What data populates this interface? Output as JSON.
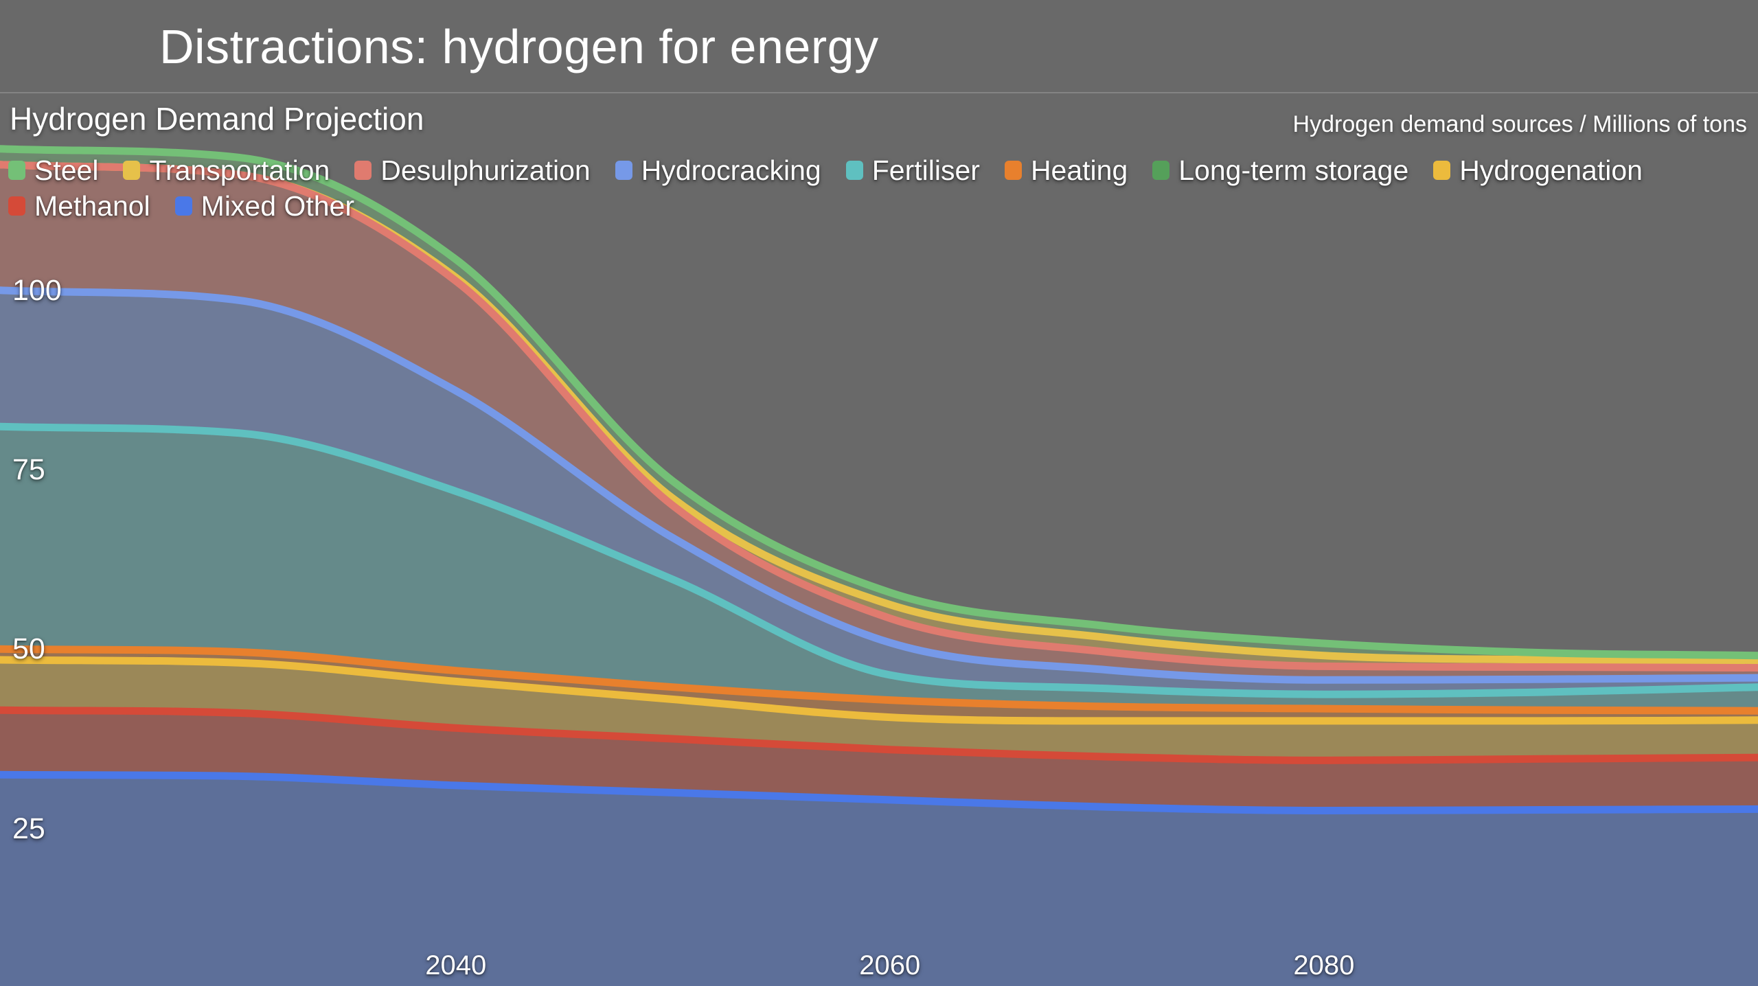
{
  "slide": {
    "title": "Distractions: hydrogen for energy"
  },
  "chart_data": {
    "type": "area",
    "stacked": true,
    "title": "Hydrogen Demand Projection",
    "right_label": "Hydrogen demand sources / Millions of tons",
    "background": "#696969",
    "fill_opacity": 0.38,
    "legend_position": "top",
    "grid": false,
    "xlim": [
      2019,
      2100
    ],
    "ylim": [
      0,
      137
    ],
    "x": [
      2019,
      2030,
      2040,
      2050,
      2060,
      2070,
      2080,
      2090,
      2100
    ],
    "x_ticks": [
      "2040",
      "2060",
      "2080"
    ],
    "x_tick_years": [
      2040,
      2060,
      2080
    ],
    "y_ticks": [
      "25",
      "50",
      "75",
      "100"
    ],
    "y_tick_values": [
      25,
      50,
      75,
      100
    ],
    "legend_rows": [
      [
        "Steel",
        "Transportation",
        "Desulphurization",
        "Hydrocracking",
        "Fertiliser",
        "Heating",
        "Long-term storage",
        "Hydrogenation"
      ],
      [
        "Methanol",
        "Mixed Other"
      ]
    ],
    "stack_order": [
      "Mixed Other",
      "Methanol",
      "Hydrogenation",
      "Long-term storage",
      "Heating",
      "Fertiliser",
      "Hydrocracking",
      "Desulphurization",
      "Transportation",
      "Steel"
    ],
    "series": [
      {
        "name": "Steel",
        "color": "#74c077",
        "values": [
          2.2,
          2.4,
          2.5,
          2.4,
          1.7,
          1.6,
          1.7,
          1.0,
          0.9
        ]
      },
      {
        "name": "Transportation",
        "color": "#e6c14a",
        "values": [
          0,
          0,
          0.5,
          1.0,
          1.9,
          2.0,
          1.5,
          1.0,
          0.8
        ]
      },
      {
        "name": "Desulphurization",
        "color": "#e07b6f",
        "values": [
          17.5,
          17.5,
          15.3,
          4.5,
          3.4,
          2.5,
          1.9,
          1.7,
          1.4
        ]
      },
      {
        "name": "Hydrocracking",
        "color": "#7699e8",
        "values": [
          19.0,
          18.5,
          14.0,
          5.8,
          4.5,
          2.6,
          2.0,
          1.8,
          1.3
        ]
      },
      {
        "name": "Fertiliser",
        "color": "#5fc0c0",
        "values": [
          31.0,
          30.5,
          25.0,
          15.0,
          3.5,
          2.5,
          2.0,
          2.5,
          3.3
        ]
      },
      {
        "name": "Heating",
        "color": "#e8802d",
        "values": [
          1.5,
          1.5,
          1.5,
          1.7,
          2.4,
          2.0,
          1.7,
          1.5,
          1.3
        ]
      },
      {
        "name": "Long-term storage",
        "color": "#55a05a",
        "values": [
          0,
          0,
          0,
          0,
          0,
          0,
          0,
          0,
          0
        ]
      },
      {
        "name": "Hydrogenation",
        "color": "#ecbb3d",
        "values": [
          7.0,
          7.0,
          6.5,
          5.5,
          4.5,
          5.0,
          5.5,
          5.3,
          5.2
        ]
      },
      {
        "name": "Methanol",
        "color": "#d54a38",
        "values": [
          9.0,
          8.8,
          8.0,
          7.5,
          7.0,
          7.0,
          7.0,
          7.1,
          7.2
        ]
      },
      {
        "name": "Mixed Other",
        "color": "#4a78e8",
        "values": [
          32.5,
          32.3,
          31.0,
          30.0,
          29.0,
          28.0,
          27.5,
          27.6,
          27.7
        ]
      }
    ]
  }
}
